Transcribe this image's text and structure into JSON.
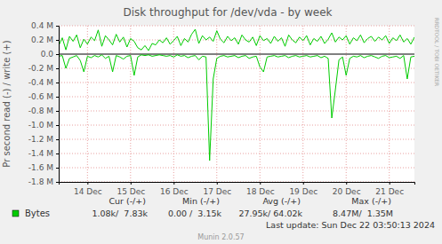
{
  "chart_data": {
    "type": "line",
    "title": "Disk throughput for /dev/vda - by week",
    "y_label": "Pr second read (-) / write (+)",
    "categories": [
      null,
      null,
      null,
      null,
      null,
      null,
      null,
      null,
      "14 Dec",
      null,
      null,
      null,
      null,
      null,
      null,
      null,
      null,
      null,
      null,
      null,
      "15 Dec",
      null,
      null,
      null,
      null,
      null,
      null,
      null,
      null,
      null,
      null,
      null,
      "16 Dec",
      null,
      null,
      null,
      null,
      null,
      null,
      null,
      null,
      null,
      null,
      null,
      "17 Dec",
      null,
      null,
      null,
      null,
      null,
      null,
      null,
      null,
      null,
      null,
      null,
      "18 Dec",
      null,
      null,
      null,
      null,
      null,
      null,
      null,
      null,
      null,
      null,
      null,
      "19 Dec",
      null,
      null,
      null,
      null,
      null,
      null,
      null,
      null,
      null,
      null,
      null,
      "20 Dec",
      null,
      null,
      null,
      null,
      null,
      null,
      null,
      null,
      null,
      null,
      null,
      "21 Dec",
      null,
      null,
      null,
      null,
      null,
      null,
      null
    ],
    "series": [
      {
        "name": "Bytes",
        "color": "#00CC00",
        "values": [
          120000,
          230000,
          60000,
          250000,
          180000,
          270000,
          90000,
          210000,
          140000,
          240000,
          190000,
          340000,
          110000,
          260000,
          200000,
          130000,
          280000,
          170000,
          240000,
          100000,
          220000,
          180000,
          90000,
          60000,
          120000,
          50000,
          150000,
          130000,
          200000,
          160000,
          230000,
          140000,
          190000,
          250000,
          120000,
          220000,
          170000,
          280000,
          350000,
          150000,
          260000,
          200000,
          240000,
          180000,
          330000,
          210000,
          160000,
          250000,
          190000,
          230000,
          140000,
          270000,
          200000,
          170000,
          240000,
          120000,
          260000,
          190000,
          220000,
          150000,
          250000,
          180000,
          230000,
          110000,
          270000,
          200000,
          160000,
          240000,
          190000,
          260000,
          130000,
          220000,
          180000,
          250000,
          150000,
          210000,
          300000,
          170000,
          240000,
          200000,
          260000,
          140000,
          230000,
          190000,
          270000,
          160000,
          220000,
          250000,
          180000,
          240000,
          200000,
          260000,
          150000,
          230000,
          190000,
          270000,
          170000,
          220000,
          140000,
          240000
        ]
      },
      {
        "color": "#00CC00",
        "values": [
          -30000,
          -20000,
          -200000,
          -60000,
          -40000,
          -20000,
          -90000,
          -250000,
          -30000,
          -50000,
          -20000,
          -40000,
          -10000,
          -60000,
          -30000,
          -250000,
          -20000,
          -40000,
          -70000,
          -30000,
          -20000,
          -300000,
          -40000,
          -10000,
          -20000,
          -10000,
          -30000,
          -20000,
          -10000,
          -20000,
          -30000,
          -20000,
          -40000,
          -10000,
          -30000,
          -20000,
          -50000,
          -30000,
          -20000,
          -80000,
          -30000,
          -40000,
          -1500000,
          -350000,
          -60000,
          -30000,
          -20000,
          -40000,
          -30000,
          -20000,
          -50000,
          -30000,
          -20000,
          -60000,
          -40000,
          -30000,
          -180000,
          -250000,
          -40000,
          -30000,
          -20000,
          -40000,
          -30000,
          -20000,
          -50000,
          -30000,
          -20000,
          -40000,
          -30000,
          -20000,
          -40000,
          -30000,
          -20000,
          -50000,
          -30000,
          -60000,
          -900000,
          -500000,
          -80000,
          -40000,
          -300000,
          -60000,
          -30000,
          -40000,
          -20000,
          -50000,
          -30000,
          -20000,
          -40000,
          -60000,
          -30000,
          -20000,
          -50000,
          -40000,
          -30000,
          -60000,
          -20000,
          -350000,
          -40000,
          -30000
        ]
      }
    ],
    "ylim": [
      -1800000,
      400000
    ],
    "yticks": [
      {
        "value": 400000,
        "label": "0.4 M"
      },
      {
        "value": 200000,
        "label": "0.2 M"
      },
      {
        "value": 0,
        "label": "0.0"
      },
      {
        "value": -200000,
        "label": "-0.2 M"
      },
      {
        "value": -400000,
        "label": "-0.4 M"
      },
      {
        "value": -600000,
        "label": "-0.6 M"
      },
      {
        "value": -800000,
        "label": "-0.8 M"
      },
      {
        "value": -1000000,
        "label": "-1.0 M"
      },
      {
        "value": -1200000,
        "label": "-1.2 M"
      },
      {
        "value": -1400000,
        "label": "-1.4 M"
      },
      {
        "value": -1600000,
        "label": "-1.6 M"
      },
      {
        "value": -1800000,
        "label": "-1.8 M"
      }
    ],
    "grid": true,
    "stats": {
      "headers": [
        "Cur (-/+)",
        "Min (-/+)",
        "Avg (-/+)",
        "Max (-/+)"
      ],
      "values": [
        "1.08k/  7.83k",
        "0.00 /  3.15k",
        "27.95k/ 64.02k",
        "8.47M/  1.35M"
      ]
    },
    "last_update": "Last update: Sun Dec 22 03:50:13 2024",
    "source": "Munin 2.0.57",
    "watermark": "RRDTOOL / TOBI OETIKER"
  }
}
